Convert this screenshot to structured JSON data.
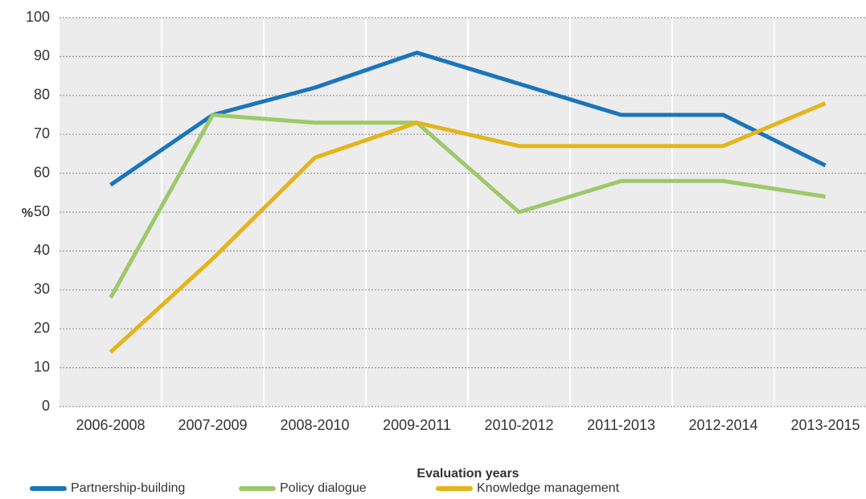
{
  "chart_data": {
    "type": "line",
    "x_label": "Evaluation years",
    "y_label": "%",
    "categories": [
      "2006-2008",
      "2007-2009",
      "2008-2010",
      "2009-2011",
      "2010-2012",
      "2011-2013",
      "2012-2014",
      "2013-2015"
    ],
    "series": [
      {
        "name": "Partnership-building",
        "color": "#1a75bb",
        "values": [
          57,
          75,
          82,
          91,
          83,
          75,
          75,
          62
        ]
      },
      {
        "name": "Policy dialogue",
        "color": "#9dc96a",
        "values": [
          28,
          75,
          73,
          73,
          50,
          58,
          58,
          54
        ]
      },
      {
        "name": "Knowledge management",
        "color": "#e3b51b",
        "values": [
          14,
          38,
          64,
          73,
          67,
          67,
          67,
          78
        ]
      }
    ],
    "ylim": [
      0,
      100
    ],
    "yticks": [
      0,
      10,
      20,
      30,
      40,
      50,
      60,
      70,
      80,
      90,
      100
    ],
    "grid": true
  }
}
